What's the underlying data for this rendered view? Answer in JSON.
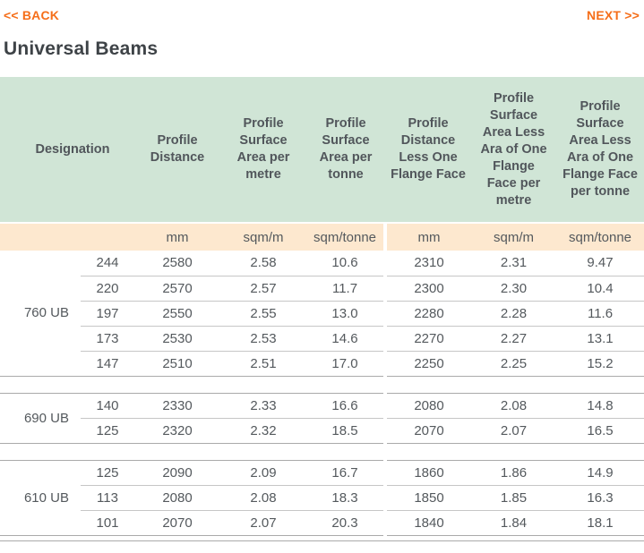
{
  "nav": {
    "back": "<< BACK",
    "next": "NEXT >>"
  },
  "title": "Universal Beams",
  "colors": {
    "accent_orange": "#f56e19",
    "header_green": "#d0e5d6",
    "units_peach": "#fde8cf",
    "text_gray": "#54595d"
  },
  "table": {
    "headers": {
      "designation": "Designation",
      "profile_distance": "Profile Distance",
      "psa_per_metre": "Profile Surface Area per metre",
      "psa_per_tonne": "Profile Surface Area per tonne",
      "pd_less_flange": "Profile Distance Less One Flange Face",
      "psa_less_flange_per_metre": "Profile Surface Area Less Ara of One Flange Face per metre",
      "psa_less_flange_per_tonne": "Profile Surface Area Less Ara of One Flange Face per tonne"
    },
    "units": {
      "profile_distance": "mm",
      "psa_per_metre": "sqm/m",
      "psa_per_tonne": "sqm/tonne",
      "pd_less_flange": "mm",
      "psa_less_flange_per_metre": "sqm/m",
      "psa_less_flange_per_tonne": "sqm/tonne"
    },
    "groups": [
      {
        "label": "760 UB",
        "rows": [
          {
            "mass": "244",
            "values": [
              "2580",
              "2.58",
              "10.6",
              "2310",
              "2.31",
              "9.47"
            ]
          },
          {
            "mass": "220",
            "values": [
              "2570",
              "2.57",
              "11.7",
              "2300",
              "2.30",
              "10.4"
            ]
          },
          {
            "mass": "197",
            "values": [
              "2550",
              "2.55",
              "13.0",
              "2280",
              "2.28",
              "11.6"
            ]
          },
          {
            "mass": "173",
            "values": [
              "2530",
              "2.53",
              "14.6",
              "2270",
              "2.27",
              "13.1"
            ]
          },
          {
            "mass": "147",
            "values": [
              "2510",
              "2.51",
              "17.0",
              "2250",
              "2.25",
              "15.2"
            ]
          }
        ]
      },
      {
        "label": "690 UB",
        "rows": [
          {
            "mass": "140",
            "values": [
              "2330",
              "2.33",
              "16.6",
              "2080",
              "2.08",
              "14.8"
            ]
          },
          {
            "mass": "125",
            "values": [
              "2320",
              "2.32",
              "18.5",
              "2070",
              "2.07",
              "16.5"
            ]
          }
        ]
      },
      {
        "label": "610 UB",
        "rows": [
          {
            "mass": "125",
            "values": [
              "2090",
              "2.09",
              "16.7",
              "1860",
              "1.86",
              "14.9"
            ]
          },
          {
            "mass": "113",
            "values": [
              "2080",
              "2.08",
              "18.3",
              "1850",
              "1.85",
              "16.3"
            ]
          },
          {
            "mass": "101",
            "values": [
              "2070",
              "2.07",
              "20.3",
              "1840",
              "1.84",
              "18.1"
            ]
          }
        ]
      }
    ]
  }
}
